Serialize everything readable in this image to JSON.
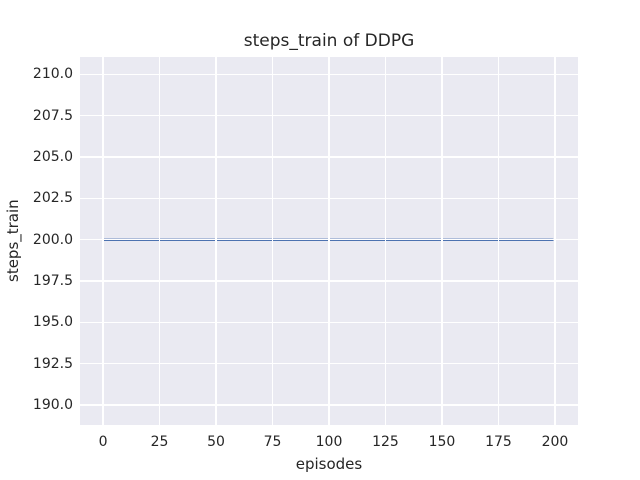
{
  "title": "steps_train of DDPG",
  "colors": {
    "figure_bg": "#ffffff",
    "plot_bg": "#eaeaf2",
    "grid": "#ffffff",
    "text": "#262626",
    "line": "#4c72b0"
  },
  "chart_data": {
    "type": "line",
    "title": "steps_train of DDPG",
    "xlabel": "episodes",
    "ylabel": "steps_train",
    "xlim": [
      -10.2,
      210.2
    ],
    "ylim": [
      188.8,
      211.05
    ],
    "grid": true,
    "legend_position": "none",
    "xticks": [
      {
        "value": 0,
        "label": "0"
      },
      {
        "value": 25,
        "label": "25"
      },
      {
        "value": 50,
        "label": "50"
      },
      {
        "value": 75,
        "label": "75"
      },
      {
        "value": 100,
        "label": "100"
      },
      {
        "value": 125,
        "label": "125"
      },
      {
        "value": 150,
        "label": "150"
      },
      {
        "value": 175,
        "label": "175"
      },
      {
        "value": 200,
        "label": "200"
      }
    ],
    "yticks": [
      {
        "value": 190.0,
        "label": "190.0"
      },
      {
        "value": 192.5,
        "label": "192.5"
      },
      {
        "value": 195.0,
        "label": "195.0"
      },
      {
        "value": 197.5,
        "label": "197.5"
      },
      {
        "value": 200.0,
        "label": "200.0"
      },
      {
        "value": 202.5,
        "label": "202.5"
      },
      {
        "value": 205.0,
        "label": "205.0"
      },
      {
        "value": 207.5,
        "label": "207.5"
      },
      {
        "value": 210.0,
        "label": "210.0"
      }
    ],
    "series": [
      {
        "name": "steps_train",
        "color": "#4c72b0",
        "linewidth": 2.4,
        "points": [
          [
            0,
            200
          ],
          [
            199,
            200
          ]
        ]
      }
    ]
  }
}
